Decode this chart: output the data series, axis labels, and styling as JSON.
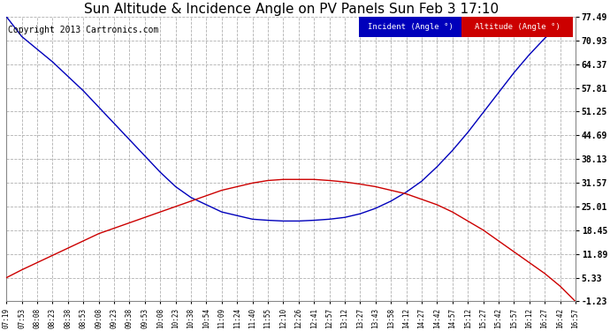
{
  "title": "Sun Altitude & Incidence Angle on PV Panels Sun Feb 3 17:10",
  "copyright": "Copyright 2013 Cartronics.com",
  "ylabel_right_ticks": [
    77.49,
    70.93,
    64.37,
    57.81,
    51.25,
    44.69,
    38.13,
    31.57,
    25.01,
    18.45,
    11.89,
    5.33,
    -1.23
  ],
  "ylim": [
    -1.23,
    77.49
  ],
  "x_labels": [
    "07:19",
    "07:53",
    "08:08",
    "08:23",
    "08:38",
    "08:53",
    "09:08",
    "09:23",
    "09:38",
    "09:53",
    "10:08",
    "10:23",
    "10:38",
    "10:54",
    "11:09",
    "11:24",
    "11:40",
    "11:55",
    "12:10",
    "12:26",
    "12:41",
    "12:57",
    "13:12",
    "13:27",
    "13:43",
    "13:58",
    "14:12",
    "14:27",
    "14:42",
    "14:57",
    "15:12",
    "15:27",
    "15:42",
    "15:57",
    "16:12",
    "16:27",
    "16:42",
    "16:57"
  ],
  "incident_color": "#0000bb",
  "altitude_color": "#cc0000",
  "background_color": "#ffffff",
  "grid_color": "#b0b0b0",
  "legend_incident_bg": "#0000bb",
  "legend_altitude_bg": "#cc0000",
  "legend_text_color": "#ffffff",
  "title_fontsize": 11,
  "copyright_fontsize": 7,
  "incident_values": [
    77.49,
    72.0,
    68.5,
    65.0,
    61.0,
    57.0,
    52.5,
    48.0,
    43.5,
    39.0,
    34.5,
    30.5,
    27.5,
    25.5,
    23.5,
    22.5,
    21.5,
    21.2,
    21.0,
    21.0,
    21.2,
    21.5,
    22.0,
    23.0,
    24.5,
    26.5,
    29.0,
    32.0,
    36.0,
    40.5,
    45.5,
    51.0,
    56.5,
    62.0,
    67.0,
    71.5,
    75.5,
    79.5
  ],
  "altitude_values": [
    5.33,
    7.5,
    9.5,
    11.5,
    13.5,
    15.5,
    17.5,
    19.0,
    20.5,
    22.0,
    23.5,
    25.0,
    26.5,
    28.0,
    29.5,
    30.5,
    31.5,
    32.2,
    32.5,
    32.5,
    32.5,
    32.2,
    31.8,
    31.2,
    30.5,
    29.5,
    28.5,
    27.0,
    25.5,
    23.5,
    21.0,
    18.5,
    15.5,
    12.5,
    9.5,
    6.5,
    3.0,
    -1.23
  ]
}
